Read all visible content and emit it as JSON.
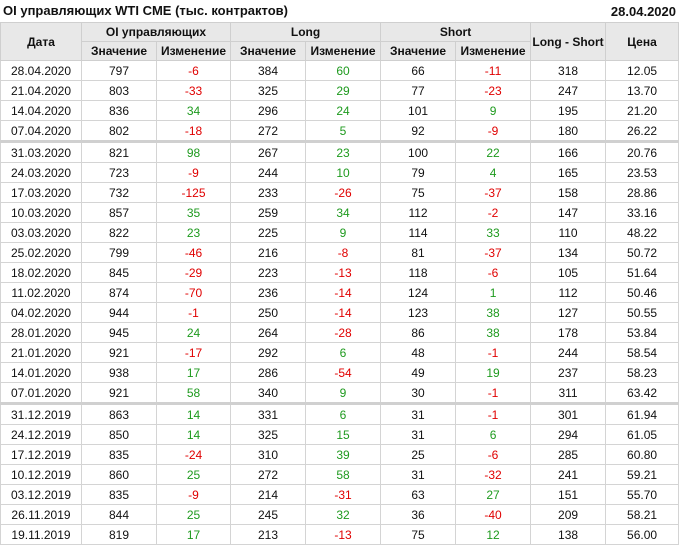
{
  "title": "OI управляющих WTI CME (тыс. контрактов)",
  "report_date": "28.04.2020",
  "colors": {
    "positive": "#1e9a1e",
    "negative": "#e00000",
    "header_bg": "#e8e8e8"
  },
  "headers": {
    "date": "Дата",
    "oi": "OI управляющих",
    "long": "Long",
    "short": "Short",
    "long_short": "Long - Short",
    "price": "Цена",
    "value": "Значение",
    "change": "Изменение"
  },
  "rows": [
    [
      "28.04.2020",
      "797",
      "-6",
      "384",
      "60",
      "66",
      "-11",
      "318",
      "12.05"
    ],
    [
      "21.04.2020",
      "803",
      "-33",
      "325",
      "29",
      "77",
      "-23",
      "247",
      "13.70"
    ],
    [
      "14.04.2020",
      "836",
      "34",
      "296",
      "24",
      "101",
      "9",
      "195",
      "21.20"
    ],
    [
      "07.04.2020",
      "802",
      "-18",
      "272",
      "5",
      "92",
      "-9",
      "180",
      "26.22"
    ],
    [
      "31.03.2020",
      "821",
      "98",
      "267",
      "23",
      "100",
      "22",
      "166",
      "20.76"
    ],
    [
      "24.03.2020",
      "723",
      "-9",
      "244",
      "10",
      "79",
      "4",
      "165",
      "23.53"
    ],
    [
      "17.03.2020",
      "732",
      "-125",
      "233",
      "-26",
      "75",
      "-37",
      "158",
      "28.86"
    ],
    [
      "10.03.2020",
      "857",
      "35",
      "259",
      "34",
      "112",
      "-2",
      "147",
      "33.16"
    ],
    [
      "03.03.2020",
      "822",
      "23",
      "225",
      "9",
      "114",
      "33",
      "110",
      "48.22"
    ],
    [
      "25.02.2020",
      "799",
      "-46",
      "216",
      "-8",
      "81",
      "-37",
      "134",
      "50.72"
    ],
    [
      "18.02.2020",
      "845",
      "-29",
      "223",
      "-13",
      "118",
      "-6",
      "105",
      "51.64"
    ],
    [
      "11.02.2020",
      "874",
      "-70",
      "236",
      "-14",
      "124",
      "1",
      "112",
      "50.46"
    ],
    [
      "04.02.2020",
      "944",
      "-1",
      "250",
      "-14",
      "123",
      "38",
      "127",
      "50.55"
    ],
    [
      "28.01.2020",
      "945",
      "24",
      "264",
      "-28",
      "86",
      "38",
      "178",
      "53.84"
    ],
    [
      "21.01.2020",
      "921",
      "-17",
      "292",
      "6",
      "48",
      "-1",
      "244",
      "58.54"
    ],
    [
      "14.01.2020",
      "938",
      "17",
      "286",
      "-54",
      "49",
      "19",
      "237",
      "58.23"
    ],
    [
      "07.01.2020",
      "921",
      "58",
      "340",
      "9",
      "30",
      "-1",
      "311",
      "63.42"
    ],
    [
      "31.12.2019",
      "863",
      "14",
      "331",
      "6",
      "31",
      "-1",
      "301",
      "61.94"
    ],
    [
      "24.12.2019",
      "850",
      "14",
      "325",
      "15",
      "31",
      "6",
      "294",
      "61.05"
    ],
    [
      "17.12.2019",
      "835",
      "-24",
      "310",
      "39",
      "25",
      "-6",
      "285",
      "60.80"
    ],
    [
      "10.12.2019",
      "860",
      "25",
      "272",
      "58",
      "31",
      "-32",
      "241",
      "59.21"
    ],
    [
      "03.12.2019",
      "835",
      "-9",
      "214",
      "-31",
      "63",
      "27",
      "151",
      "55.70"
    ],
    [
      "26.11.2019",
      "844",
      "25",
      "245",
      "32",
      "36",
      "-40",
      "209",
      "58.21"
    ],
    [
      "19.11.2019",
      "819",
      "17",
      "213",
      "-13",
      "75",
      "12",
      "138",
      "56.00"
    ]
  ],
  "separator_before_rows": [
    4,
    17
  ]
}
